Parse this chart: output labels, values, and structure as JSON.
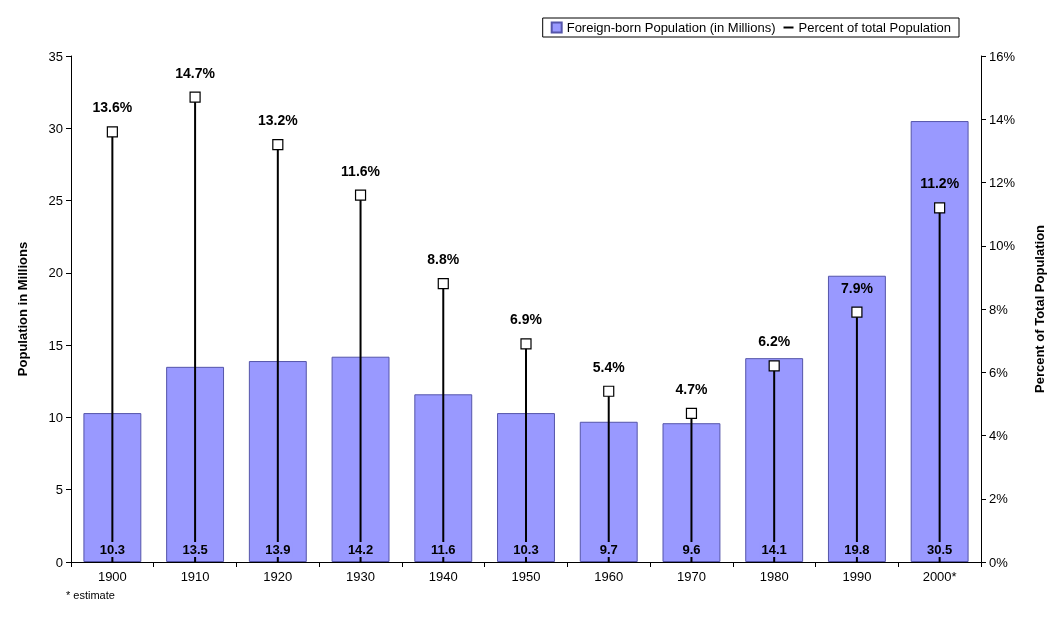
{
  "chart_data": {
    "type": "bar",
    "categories": [
      "1900",
      "1910",
      "1920",
      "1930",
      "1940",
      "1950",
      "1960",
      "1970",
      "1980",
      "1990",
      "2000*"
    ],
    "ylabel": "Population in Millions",
    "y2label": "Percent of Total Population",
    "ylim": [
      0,
      35
    ],
    "yticks": [
      0,
      5,
      10,
      15,
      20,
      25,
      30,
      35
    ],
    "y2lim": [
      0,
      16
    ],
    "y2ticks": [
      {
        "value": 0,
        "label": "0%"
      },
      {
        "value": 2,
        "label": "2%"
      },
      {
        "value": 4,
        "label": "4%"
      },
      {
        "value": 6,
        "label": "6%"
      },
      {
        "value": 8,
        "label": "8%"
      },
      {
        "value": 10,
        "label": "10%"
      },
      {
        "value": 12,
        "label": "12%"
      },
      {
        "value": 14,
        "label": "14%"
      },
      {
        "value": 16,
        "label": "16%"
      }
    ],
    "series": [
      {
        "name": "Foreign-born Population (in Millions)",
        "color": "#9999ff",
        "values": [
          10.3,
          13.5,
          13.9,
          14.2,
          11.6,
          10.3,
          9.7,
          9.6,
          14.1,
          19.8,
          30.5
        ],
        "data_labels": true
      },
      {
        "name": "Percent of total Population",
        "type": "lollipop",
        "axis": "y2",
        "color": "#000000",
        "values": [
          13.6,
          14.7,
          13.2,
          11.6,
          8.8,
          6.9,
          5.4,
          4.7,
          6.2,
          7.9,
          11.2
        ],
        "value_labels": [
          "13.6%",
          "14.7%",
          "13.2%",
          "11.6%",
          "8.8%",
          "6.9%",
          "5.4%",
          "4.7%",
          "6.2%",
          "7.9%",
          "11.2%"
        ]
      }
    ],
    "legend": "top right",
    "marker": "square",
    "grid": false,
    "annotations": [
      "* estimate"
    ]
  }
}
